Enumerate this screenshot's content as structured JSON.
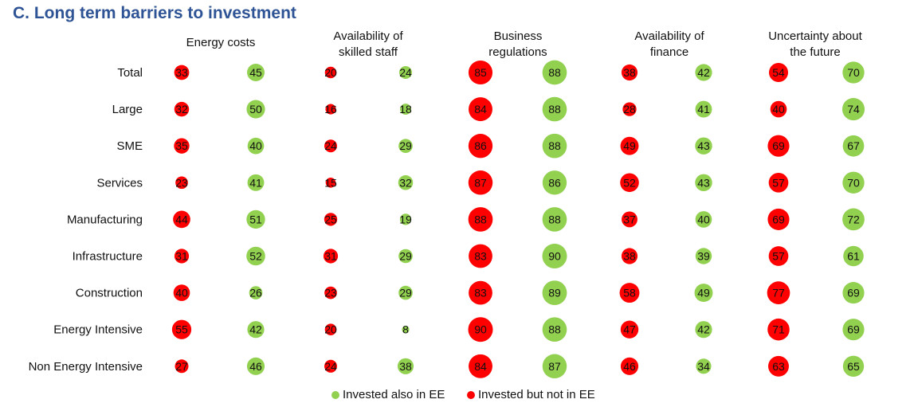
{
  "title": "C. Long term barriers to investment",
  "chart_data": {
    "type": "bubble-matrix",
    "title": "C. Long term barriers to investment",
    "columns": [
      [
        "Energy costs"
      ],
      [
        "Availability of",
        "skilled staff"
      ],
      [
        "Business",
        "regulations"
      ],
      [
        "Availability of",
        "finance"
      ],
      [
        "Uncertainty about",
        "the future"
      ]
    ],
    "rows": [
      "Total",
      "Large",
      "SME",
      "Services",
      "Manufacturing",
      "Infrastructure",
      "Construction",
      "Energy Intensive",
      "Non Energy Intensive"
    ],
    "series": [
      {
        "name": "Invested but not in EE",
        "color": "#ff0000",
        "values": [
          [
            33,
            20,
            85,
            38,
            54
          ],
          [
            32,
            16,
            84,
            28,
            40
          ],
          [
            35,
            24,
            86,
            49,
            69
          ],
          [
            23,
            15,
            87,
            52,
            57
          ],
          [
            44,
            25,
            88,
            37,
            69
          ],
          [
            31,
            31,
            83,
            38,
            57
          ],
          [
            40,
            23,
            83,
            58,
            77
          ],
          [
            55,
            20,
            90,
            47,
            71
          ],
          [
            27,
            24,
            84,
            46,
            63
          ]
        ]
      },
      {
        "name": "Invested also in EE",
        "color": "#92d050",
        "values": [
          [
            45,
            24,
            88,
            42,
            70
          ],
          [
            50,
            18,
            88,
            41,
            74
          ],
          [
            40,
            29,
            88,
            43,
            67
          ],
          [
            41,
            32,
            86,
            43,
            70
          ],
          [
            51,
            19,
            88,
            40,
            72
          ],
          [
            52,
            29,
            90,
            39,
            61
          ],
          [
            26,
            29,
            89,
            49,
            69
          ],
          [
            42,
            8,
            88,
            42,
            69
          ],
          [
            46,
            38,
            87,
            34,
            65
          ]
        ]
      }
    ],
    "legend": [
      {
        "label": "Invested also in EE",
        "color": "#92d050"
      },
      {
        "label": "Invested but not in EE",
        "color": "#ff0000"
      }
    ]
  }
}
